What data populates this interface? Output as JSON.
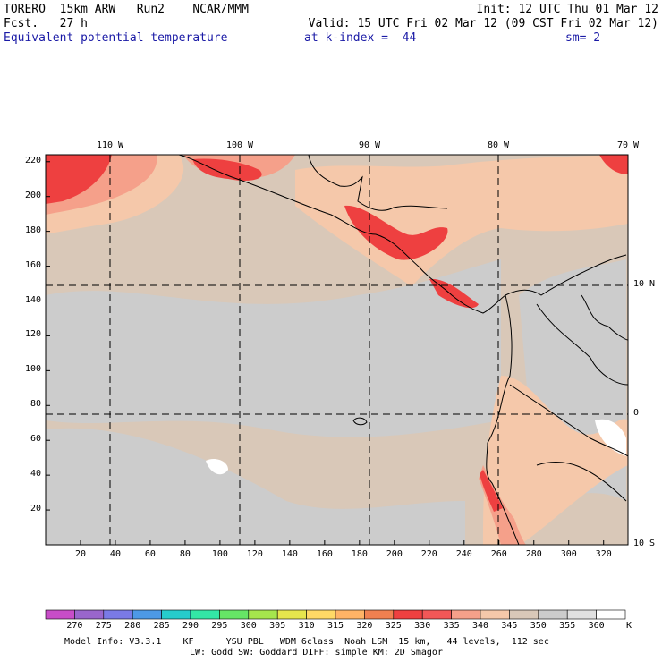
{
  "header": {
    "model_line": "TORERO  15km ARW   Run2    NCAR/MMM",
    "init": "Init: 12 UTC Thu 01 Mar 12",
    "fcst": "Fcst.   27 h",
    "valid": "Valid: 15 UTC Fri 02 Mar 12 (09 CST Fri 02 Mar 12)",
    "field": "Equivalent potential temperature",
    "level": "at k-index =  44",
    "smoothing": "sm= 2"
  },
  "map": {
    "top_lon_labels": [
      "110 W",
      "100 W",
      "90 W",
      "80 W",
      "70 W"
    ],
    "right_lat_labels": [
      "10 N",
      "0",
      "10 S"
    ],
    "left_y_ticks": [
      "20",
      "40",
      "60",
      "80",
      "100",
      "120",
      "140",
      "160",
      "180",
      "200",
      "220"
    ],
    "bottom_x_ticks": [
      "20",
      "40",
      "60",
      "80",
      "100",
      "120",
      "140",
      "160",
      "180",
      "200",
      "220",
      "240",
      "260",
      "280",
      "300",
      "320"
    ],
    "dominant_value_range": "340-355 K"
  },
  "colorbar": {
    "colors": [
      "#c84dc8",
      "#9966cc",
      "#7a7ae6",
      "#4d99e6",
      "#26cccc",
      "#33e6a6",
      "#66e666",
      "#a6e64d",
      "#e6e64d",
      "#ffd966",
      "#ffb366",
      "#f08050",
      "#ee4040",
      "#f25757",
      "#f5a08a",
      "#f5c8aa",
      "#d9c8b8",
      "#cccccc",
      "#e0e0e0",
      "#ffffff"
    ],
    "labels": [
      "270",
      "275",
      "280",
      "285",
      "290",
      "295",
      "300",
      "305",
      "310",
      "315",
      "320",
      "325",
      "330",
      "335",
      "340",
      "345",
      "350",
      "355",
      "360"
    ],
    "unit": "K"
  },
  "footer": {
    "line1": "Model Info: V3.3.1    KF      YSU PBL   WDM 6class  Noah LSM  15 km,   44 levels,  112 sec",
    "line2": "LW: Godd SW: Goddard DIFF: simple KM: 2D Smagor"
  }
}
